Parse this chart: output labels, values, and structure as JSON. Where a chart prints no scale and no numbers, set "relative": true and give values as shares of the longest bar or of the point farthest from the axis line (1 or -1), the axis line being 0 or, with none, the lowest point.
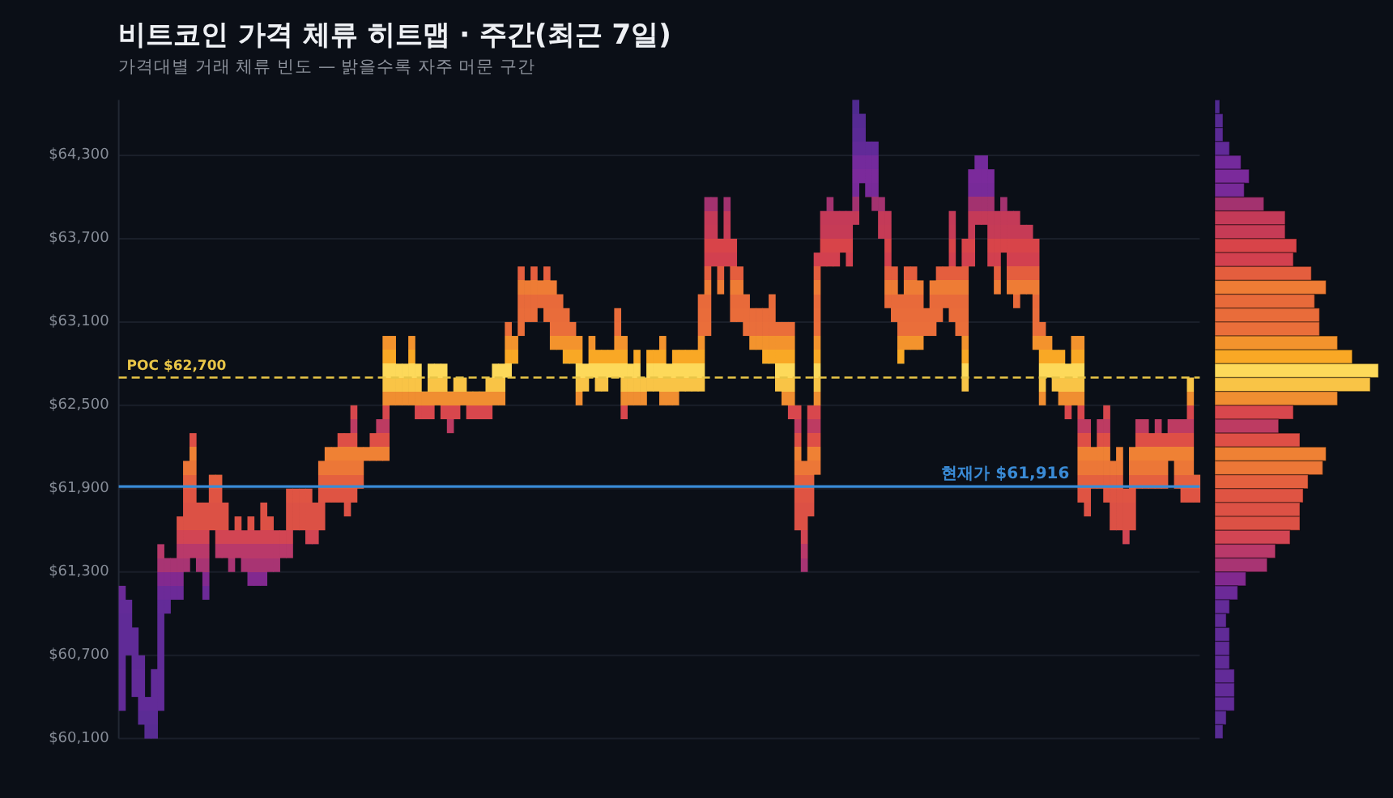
{
  "chart_data": [
    {
      "type": "bar",
      "title": "비트코인 가격 체류 히트맵 · 주간(최근 7일)",
      "subtitle": "가격대별 거래 체류 빈도 — 밝을수록 자주 머문 구간",
      "categories": [
        null,
        null,
        null,
        null,
        null,
        null,
        null,
        null,
        null,
        null,
        null,
        null,
        null,
        null,
        null,
        null,
        null,
        null,
        null,
        null,
        null,
        null,
        null,
        null,
        null,
        null,
        null,
        null,
        null,
        null,
        null,
        null,
        null,
        null,
        null,
        null,
        null,
        null,
        null,
        null,
        null,
        null,
        null,
        null,
        null,
        null,
        null,
        null,
        null,
        null,
        null,
        null,
        null,
        null,
        null,
        null,
        null,
        null,
        null,
        null,
        null,
        null,
        null,
        null,
        null,
        null,
        null,
        null,
        null,
        null,
        null,
        null,
        null,
        null,
        null,
        null,
        null,
        null,
        null,
        null,
        null,
        null,
        null,
        null,
        null,
        null,
        null,
        null,
        null,
        null,
        null,
        null,
        null,
        null,
        null,
        null,
        null,
        null,
        null,
        null,
        null,
        null,
        null,
        null,
        null,
        null,
        null,
        null,
        null,
        null,
        null,
        null,
        null,
        null,
        null,
        null,
        null,
        null,
        null,
        null,
        null,
        null,
        null,
        null,
        null,
        null,
        null,
        null,
        null,
        null,
        null,
        null,
        null,
        null,
        null,
        null,
        null,
        null,
        null,
        null,
        null,
        null,
        null,
        null,
        null,
        null,
        null,
        null,
        null,
        null,
        null,
        null,
        null,
        null,
        null,
        null,
        null,
        null,
        null,
        null,
        null,
        null,
        null,
        null,
        null,
        null,
        null,
        null
      ],
      "base": [
        60300,
        60700,
        60400,
        60200,
        60100,
        60100,
        60300,
        61000,
        61100,
        61100,
        61300,
        61400,
        61300,
        61100,
        61600,
        61400,
        61400,
        61300,
        61400,
        61300,
        61200,
        61200,
        61200,
        61300,
        61300,
        61400,
        61400,
        61600,
        61600,
        61500,
        61500,
        61600,
        61800,
        61800,
        61800,
        61700,
        61800,
        61900,
        62100,
        62100,
        62100,
        62100,
        62500,
        62500,
        62500,
        62500,
        62400,
        62400,
        62400,
        62500,
        62400,
        62300,
        62400,
        62500,
        62400,
        62400,
        62400,
        62400,
        62500,
        62500,
        62700,
        62800,
        63000,
        63100,
        63100,
        63200,
        63100,
        62900,
        62900,
        62800,
        62800,
        62500,
        62600,
        62700,
        62600,
        62600,
        62700,
        62700,
        62400,
        62500,
        62500,
        62500,
        62600,
        62600,
        62500,
        62500,
        62500,
        62600,
        62600,
        62600,
        62600,
        63000,
        63500,
        63300,
        63500,
        63100,
        63100,
        63000,
        62900,
        62900,
        62800,
        62800,
        62600,
        62500,
        62400,
        61600,
        61300,
        61700,
        62000,
        63500,
        63500,
        63500,
        63600,
        63500,
        63800,
        64100,
        64000,
        63900,
        63700,
        63200,
        63100,
        62800,
        62900,
        62900,
        62900,
        63000,
        63000,
        63100,
        63200,
        63100,
        63000,
        62600,
        63500,
        63800,
        63800,
        63500,
        63300,
        63600,
        63300,
        63200,
        63300,
        63300,
        62900,
        62500,
        62700,
        62600,
        62500,
        62400,
        62500,
        61800,
        61700,
        61900,
        61900,
        61800,
        61600,
        61600,
        61500,
        61600,
        61900,
        61900,
        61900,
        61900,
        61900,
        62100,
        61900,
        61800,
        61800,
        61800
      ],
      "values": [
        900,
        400,
        500,
        500,
        300,
        500,
        1200,
        400,
        300,
        600,
        800,
        900,
        500,
        700,
        400,
        600,
        400,
        300,
        300,
        300,
        500,
        400,
        600,
        400,
        300,
        200,
        500,
        300,
        300,
        400,
        300,
        500,
        400,
        400,
        500,
        600,
        700,
        300,
        100,
        200,
        300,
        900,
        500,
        300,
        300,
        500,
        400,
        200,
        400,
        300,
        400,
        300,
        300,
        200,
        200,
        200,
        200,
        300,
        300,
        300,
        400,
        200,
        500,
        300,
        400,
        200,
        400,
        500,
        400,
        400,
        300,
        500,
        200,
        300,
        300,
        300,
        200,
        500,
        600,
        300,
        400,
        200,
        300,
        300,
        500,
        300,
        400,
        300,
        300,
        300,
        700,
        1000,
        500,
        400,
        500,
        600,
        400,
        300,
        300,
        300,
        400,
        500,
        500,
        600,
        700,
        900,
        800,
        800,
        1600,
        400,
        500,
        400,
        300,
        400,
        900,
        500,
        400,
        500,
        300,
        700,
        400,
        500,
        600,
        600,
        500,
        200,
        400,
        400,
        300,
        800,
        500,
        1100,
        700,
        500,
        500,
        700,
        600,
        400,
        600,
        700,
        500,
        500,
        800,
        600,
        300,
        300,
        400,
        400,
        500,
        1200,
        700,
        300,
        500,
        700,
        500,
        600,
        400,
        600,
        500,
        500,
        400,
        500,
        400,
        300,
        500,
        600,
        900,
        200
      ],
      "ylim": [
        60100,
        64700
      ],
      "yticks": [
        {
          "value": 60100,
          "label": "$60,100"
        },
        {
          "value": 60700,
          "label": "$60,700"
        },
        {
          "value": 61300,
          "label": "$61,300"
        },
        {
          "value": 61900,
          "label": "$61,900"
        },
        {
          "value": 62500,
          "label": "$62,500"
        },
        {
          "value": 63100,
          "label": "$63,100"
        },
        {
          "value": 63700,
          "label": "$63,700"
        },
        {
          "value": 64300,
          "label": "$64,300"
        }
      ],
      "grid": "y",
      "tick_labels": "y",
      "ref_lines": [
        {
          "axis": "y",
          "value": 62700,
          "label": "POC $62,700",
          "color": "#e8c547",
          "line_style": "dashed"
        },
        {
          "axis": "y",
          "value": 61916,
          "label": "현재가 $61,916",
          "color": "#3a8bd6",
          "line_style": "solid"
        }
      ]
    },
    {
      "type": "bar",
      "orientation": "horizontal",
      "relative": true,
      "tick_labels": false,
      "categories": [
        null,
        null,
        null,
        null,
        null,
        null,
        null,
        null,
        null,
        null,
        null,
        null,
        null,
        null,
        null,
        null,
        null,
        null,
        null,
        null,
        null,
        null,
        null,
        null,
        null,
        null,
        null,
        null,
        null,
        null,
        null,
        null,
        null,
        null,
        null,
        null,
        null,
        null,
        null,
        null,
        null,
        null,
        null,
        null,
        null,
        null
      ],
      "values": [
        0.03,
        0.05,
        0.05,
        0.09,
        0.16,
        0.21,
        0.18,
        0.3,
        0.43,
        0.43,
        0.5,
        0.48,
        0.59,
        0.68,
        0.61,
        0.64,
        0.64,
        0.75,
        0.84,
        1,
        0.95,
        0.75,
        0.48,
        0.39,
        0.52,
        0.68,
        0.66,
        0.57,
        0.54,
        0.52,
        0.52,
        0.46,
        0.37,
        0.32,
        0.19,
        0.14,
        0.09,
        0.07,
        0.09,
        0.09,
        0.09,
        0.12,
        0.12,
        0.12,
        0.07,
        0.05
      ],
      "colors": [
        "#4f2a8f",
        "#562a93",
        "#5a2a95",
        "#612a98",
        "#742a9c",
        "#7b2a9b",
        "#782a99",
        "#a3326f",
        "#c43a58",
        "#c63b56",
        "#d84449",
        "#d2404f",
        "#e45e3e",
        "#ee7c35",
        "#e86a3a",
        "#e96c3a",
        "#ea6e3a",
        "#f3932d",
        "#f9a825",
        "#fdd95a",
        "#f9c446",
        "#f08e31",
        "#d8474d",
        "#bd3b62",
        "#de4f46",
        "#ef8134",
        "#ec7737",
        "#e4603f",
        "#df5443",
        "#dc5145",
        "#dc5145",
        "#d24553",
        "#b9396a",
        "#a83473",
        "#82298f",
        "#6c2a98",
        "#632b98",
        "#602b97",
        "#602b97",
        "#602b97",
        "#602b97",
        "#622b98",
        "#622b98",
        "#622b98",
        "#5b2c95",
        "#582c93"
      ]
    }
  ]
}
